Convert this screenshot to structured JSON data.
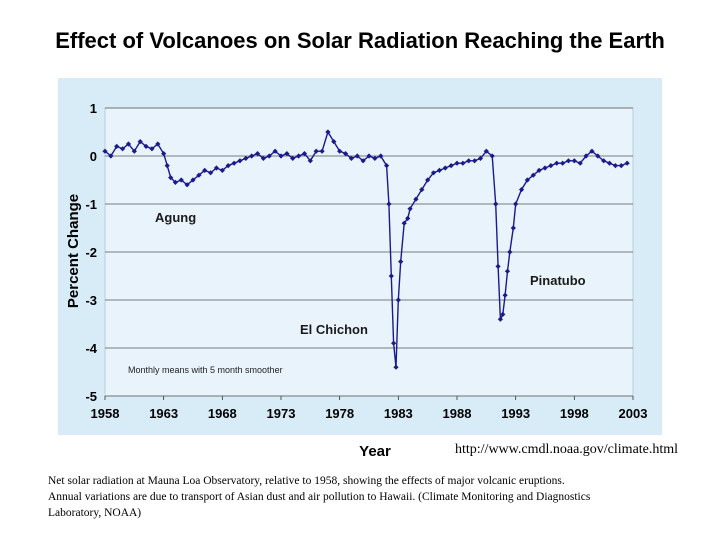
{
  "page": {
    "title": "Effect of Volcanoes on Solar Radiation Reaching the Earth",
    "source_url": "http://www.cmdl.noaa.gov/climate.html",
    "caption_line1": "Net solar radiation at Mauna Loa Observatory, relative to 1958, showing the effects of major volcanic eruptions.",
    "caption_line2": "Annual variations are due to transport of Asian dust and air pollution to Hawaii. (Climate Monitoring and Diagnostics",
    "caption_line3": "Laboratory, NOAA)"
  },
  "colors": {
    "plot_background": "#e8f3fb",
    "frame_background": "#d8ecf8",
    "gridline": "#555555",
    "series": "#1a1a8c"
  },
  "chart_data": {
    "type": "scatter",
    "title": "",
    "xlabel": "Year",
    "ylabel": "Percent Change",
    "xlim": [
      1958,
      2003
    ],
    "ylim": [
      -5,
      1
    ],
    "xticks": [
      "1958",
      "1963",
      "1968",
      "1973",
      "1978",
      "1983",
      "1988",
      "1993",
      "1998",
      "2003"
    ],
    "yticks": [
      "1",
      "0",
      "-1",
      "-2",
      "-3",
      "-4",
      "-5"
    ],
    "grid": "horizontal",
    "note": "Monthly means with 5 month smoother",
    "annotations": [
      {
        "text": "Agung",
        "x": 1963,
        "y": -1.2
      },
      {
        "text": "El Chichon",
        "x": 1980,
        "y": -3.6
      },
      {
        "text": "Pinatubo",
        "x": 1993,
        "y": -2.6
      }
    ],
    "series": [
      {
        "name": "",
        "x": [
          1958.0,
          1958.5,
          1959.0,
          1959.5,
          1960.0,
          1960.5,
          1961.0,
          1961.5,
          1962.0,
          1962.5,
          1963.0,
          1963.3,
          1963.6,
          1964.0,
          1964.5,
          1965.0,
          1965.5,
          1966.0,
          1966.5,
          1967.0,
          1967.5,
          1968.0,
          1968.5,
          1969.0,
          1969.5,
          1970.0,
          1970.5,
          1971.0,
          1971.5,
          1972.0,
          1972.5,
          1973.0,
          1973.5,
          1974.0,
          1974.5,
          1975.0,
          1975.5,
          1976.0,
          1976.5,
          1977.0,
          1977.5,
          1978.0,
          1978.5,
          1979.0,
          1979.5,
          1980.0,
          1980.5,
          1981.0,
          1981.5,
          1982.0,
          1982.2,
          1982.4,
          1982.6,
          1982.8,
          1983.0,
          1983.2,
          1983.5,
          1983.8,
          1984.0,
          1984.5,
          1985.0,
          1985.5,
          1986.0,
          1986.5,
          1987.0,
          1987.5,
          1988.0,
          1988.5,
          1989.0,
          1989.5,
          1990.0,
          1990.5,
          1991.0,
          1991.3,
          1991.5,
          1991.7,
          1991.9,
          1992.1,
          1992.3,
          1992.5,
          1992.8,
          1993.0,
          1993.5,
          1994.0,
          1994.5,
          1995.0,
          1995.5,
          1996.0,
          1996.5,
          1997.0,
          1997.5,
          1998.0,
          1998.5,
          1999.0,
          1999.5,
          2000.0,
          2000.5,
          2001.0,
          2001.5,
          2002.0,
          2002.5
        ],
        "y": [
          0.1,
          0.0,
          0.2,
          0.15,
          0.25,
          0.1,
          0.3,
          0.2,
          0.15,
          0.25,
          0.05,
          -0.2,
          -0.45,
          -0.55,
          -0.5,
          -0.6,
          -0.5,
          -0.4,
          -0.3,
          -0.35,
          -0.25,
          -0.3,
          -0.2,
          -0.15,
          -0.1,
          -0.05,
          0.0,
          0.05,
          -0.05,
          0.0,
          0.1,
          0.0,
          0.05,
          -0.05,
          0.0,
          0.05,
          -0.1,
          0.1,
          0.1,
          0.5,
          0.3,
          0.1,
          0.05,
          -0.05,
          0.0,
          -0.1,
          0.0,
          -0.05,
          0.0,
          -0.2,
          -1.0,
          -2.5,
          -3.9,
          -4.4,
          -3.0,
          -2.2,
          -1.4,
          -1.3,
          -1.1,
          -0.9,
          -0.7,
          -0.5,
          -0.35,
          -0.3,
          -0.25,
          -0.2,
          -0.15,
          -0.15,
          -0.1,
          -0.1,
          -0.05,
          0.1,
          0.0,
          -1.0,
          -2.3,
          -3.4,
          -3.3,
          -2.9,
          -2.4,
          -2.0,
          -1.5,
          -1.0,
          -0.7,
          -0.5,
          -0.4,
          -0.3,
          -0.25,
          -0.2,
          -0.15,
          -0.15,
          -0.1,
          -0.1,
          -0.15,
          0.0,
          0.1,
          0.0,
          -0.1,
          -0.15,
          -0.2,
          -0.2,
          -0.15
        ]
      }
    ]
  }
}
